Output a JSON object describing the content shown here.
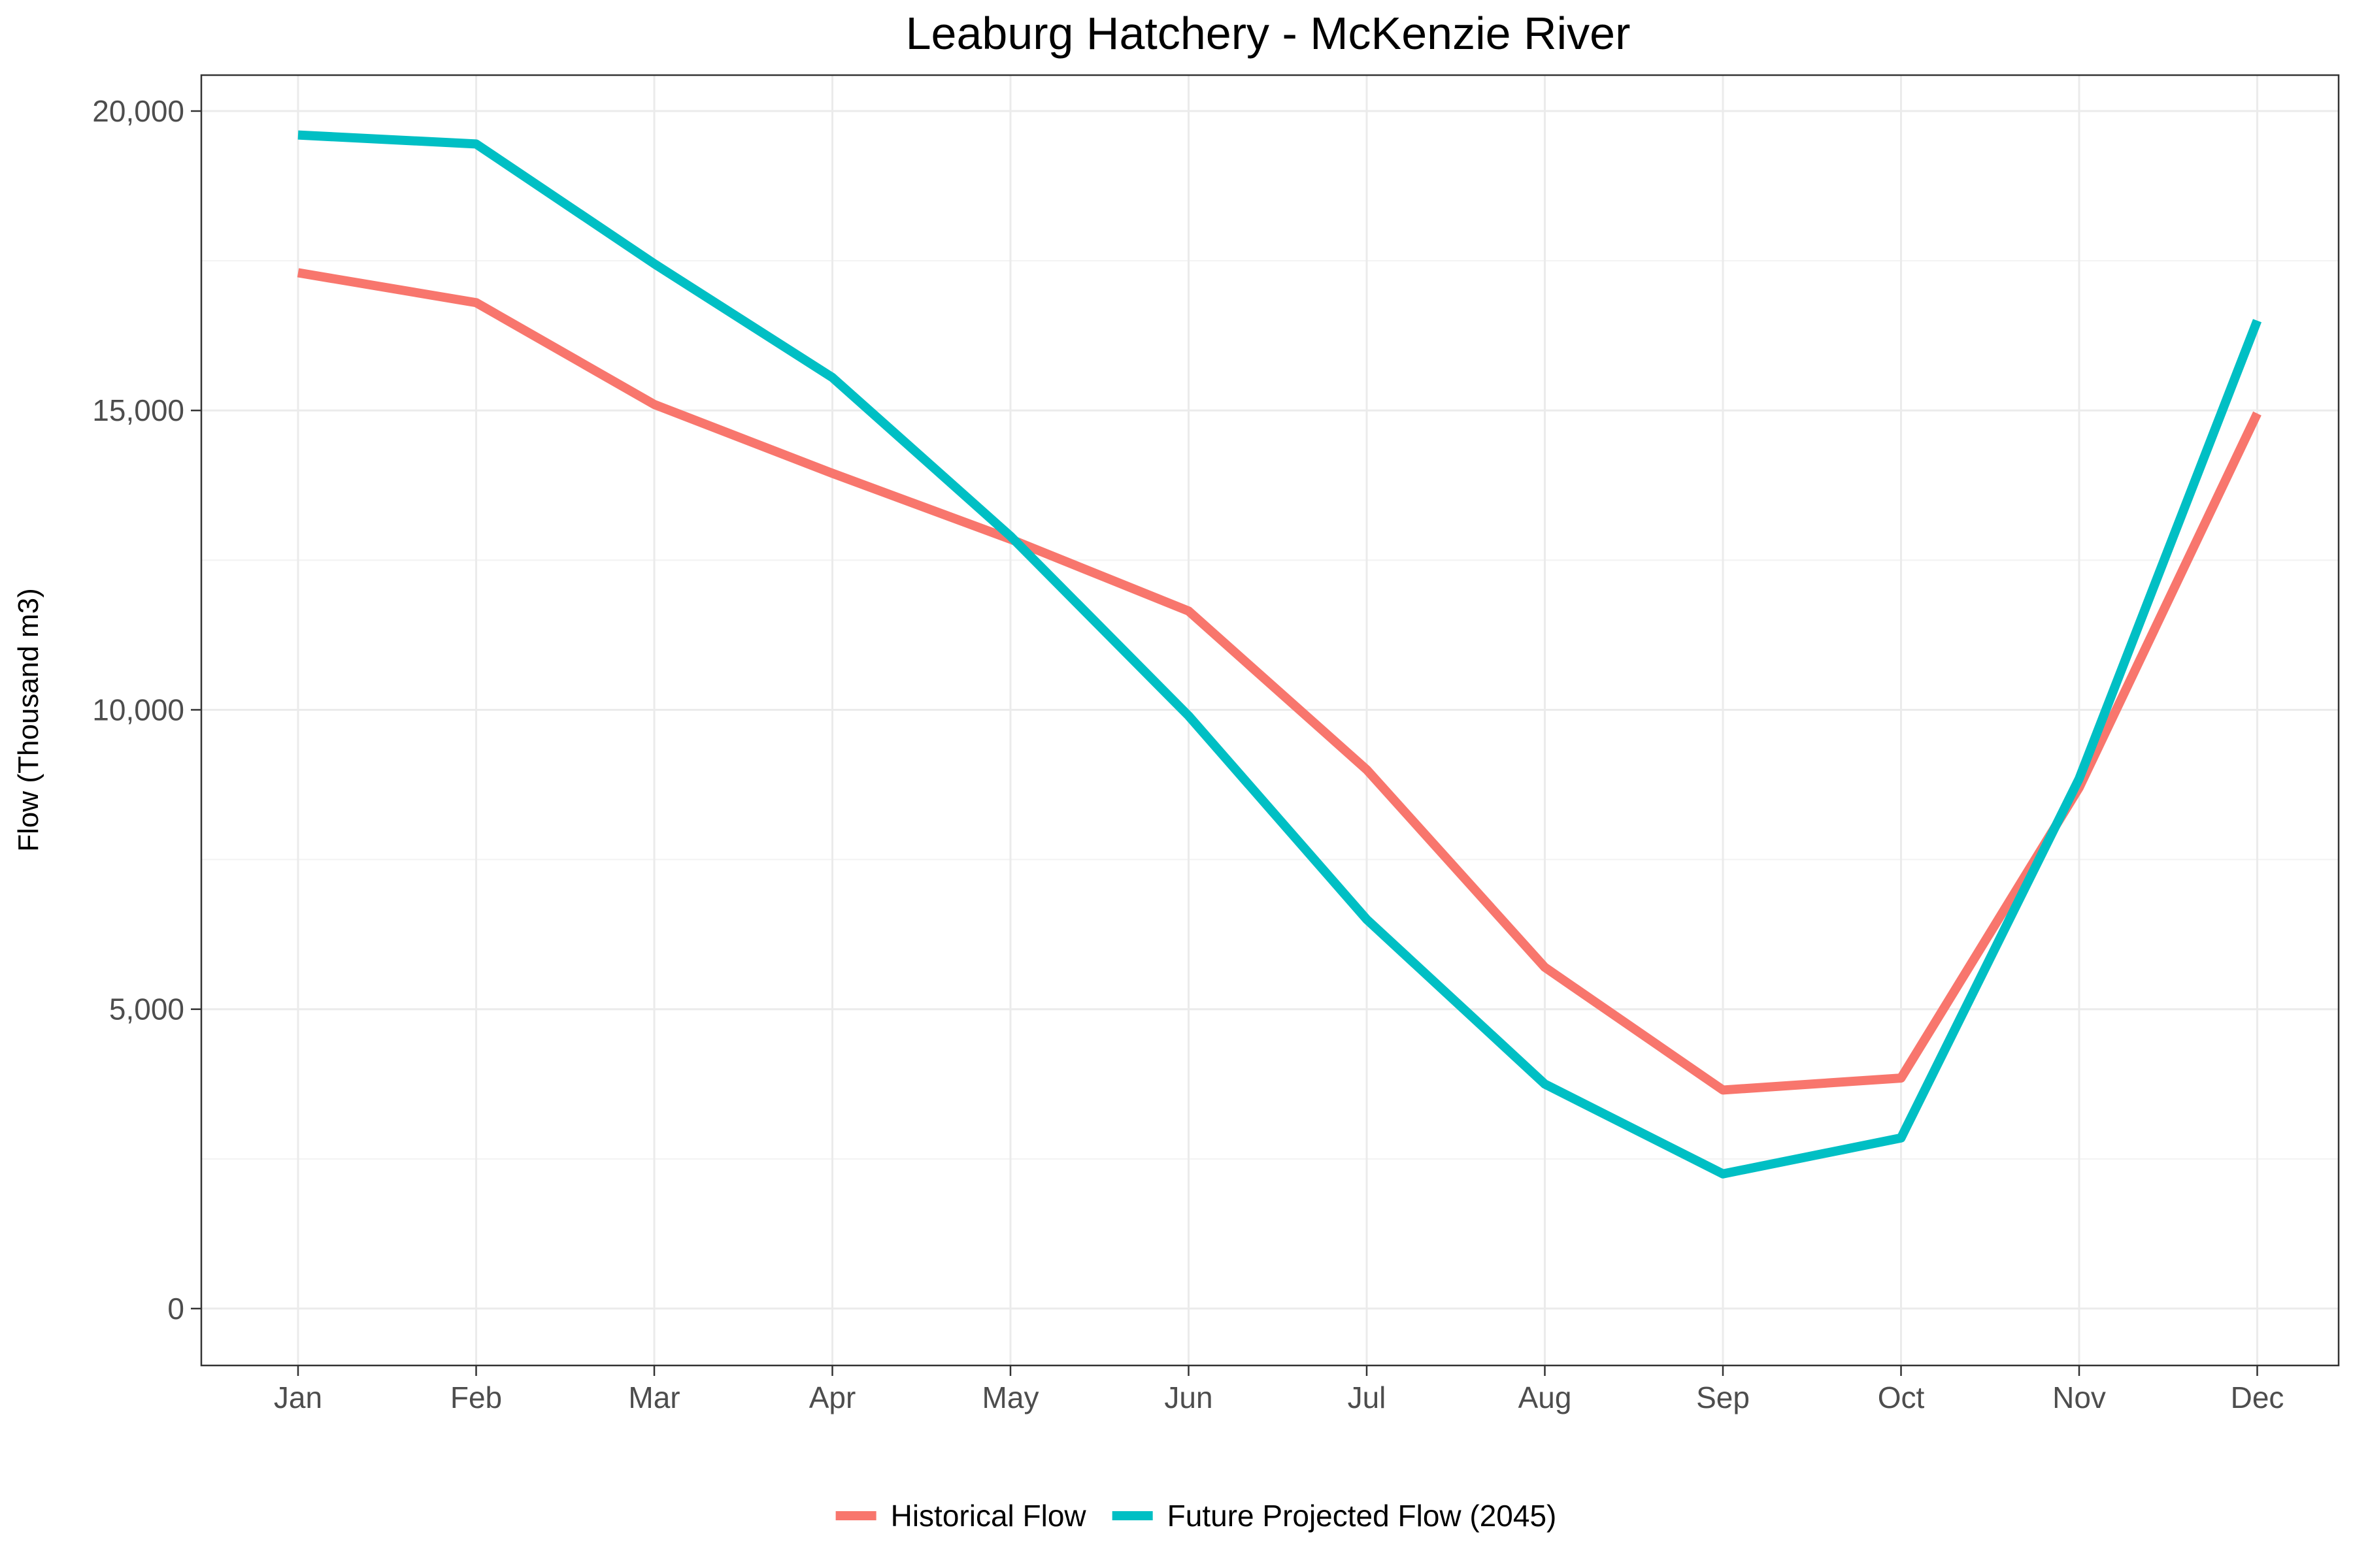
{
  "chart_data": {
    "type": "line",
    "title": "Leaburg Hatchery - McKenzie River",
    "xlabel": "",
    "ylabel": "Flow (Thousand m3)",
    "categories": [
      "Jan",
      "Feb",
      "Mar",
      "Apr",
      "May",
      "Jun",
      "Jul",
      "Aug",
      "Sep",
      "Oct",
      "Nov",
      "Dec"
    ],
    "ylim": [
      -950,
      20600
    ],
    "yticks": [
      0,
      5000,
      10000,
      15000,
      20000
    ],
    "ytick_labels": [
      "0",
      "5,000",
      "10,000",
      "15,000",
      "20,000"
    ],
    "grid": true,
    "legend_position": "bottom",
    "series": [
      {
        "name": "Historical Flow",
        "color": "#F8766D",
        "values": [
          17300,
          16800,
          15100,
          13950,
          12850,
          11650,
          9000,
          5700,
          3650,
          3850,
          8700,
          14950
        ]
      },
      {
        "name": "Future Projected Flow (2045)",
        "color": "#00BFC4",
        "values": [
          19600,
          19450,
          17450,
          15550,
          12900,
          9900,
          6500,
          3750,
          2250,
          2850,
          8850,
          16500
        ]
      }
    ]
  }
}
